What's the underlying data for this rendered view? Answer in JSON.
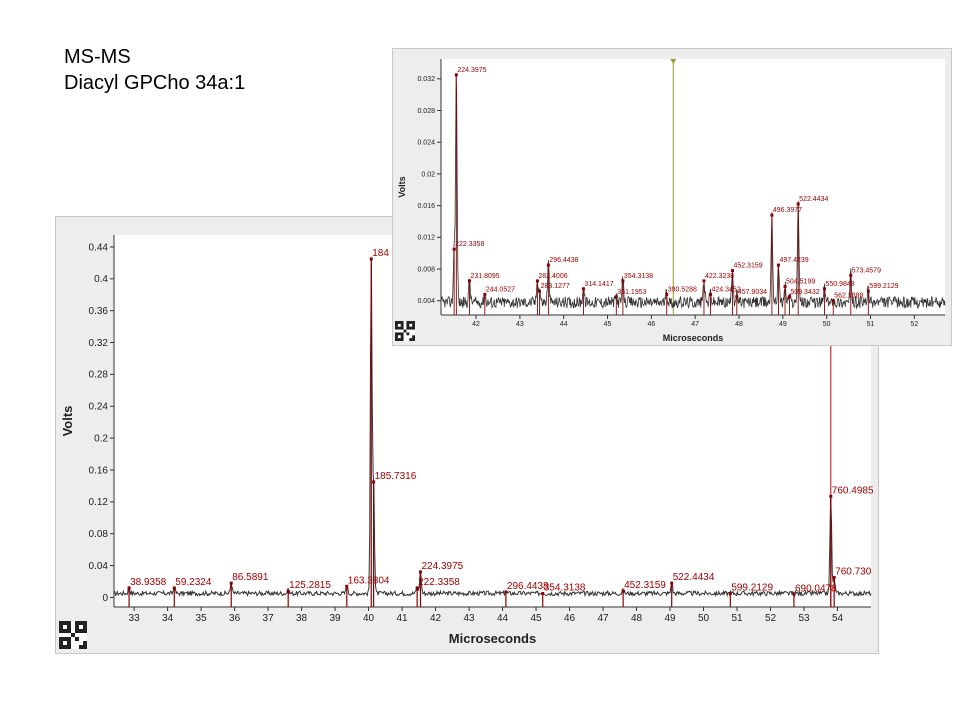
{
  "slide": {
    "title_line1": "MS-MS",
    "title_line2": "Diacyl GPCho 34a:1"
  },
  "colors": {
    "trace": "#333333",
    "peak": "#8b0000",
    "label": "#a00000",
    "cursor_main": "#c00000",
    "cursor_inset": "#9a9a30",
    "panel_bg": "#ededed",
    "plot_bg": "#ffffff"
  },
  "chart_data": [
    {
      "type": "line",
      "xlabel": "Microseconds",
      "ylabel": "Volts",
      "xlim": [
        32.4,
        55.0
      ],
      "ylim": [
        -0.012,
        0.455
      ],
      "x_ticks": [
        33,
        34,
        35,
        36,
        37,
        38,
        39,
        40,
        41,
        42,
        43,
        44,
        45,
        46,
        47,
        48,
        49,
        50,
        51,
        52,
        53,
        54
      ],
      "y_ticks": [
        0,
        0.04,
        0.08,
        0.12,
        0.16,
        0.2,
        0.24,
        0.28,
        0.32,
        0.36,
        0.4,
        0.44
      ],
      "y_tick_labels": [
        "0",
        "0.04",
        "0.08",
        "0.12",
        "0.16",
        "0.2",
        "0.24",
        "0.28",
        "0.32",
        "0.36",
        "0.4",
        "0.44"
      ],
      "cursor_x": 53.8,
      "peaks": [
        {
          "x": 32.85,
          "y": 0.012,
          "label": "38.9358"
        },
        {
          "x": 34.2,
          "y": 0.012,
          "label": "59.2324"
        },
        {
          "x": 35.9,
          "y": 0.018,
          "label": "86.5891"
        },
        {
          "x": 37.6,
          "y": 0.008,
          "label": "125.2815"
        },
        {
          "x": 39.35,
          "y": 0.014,
          "label": "163.3804"
        },
        {
          "x": 40.08,
          "y": 0.425,
          "label": "184"
        },
        {
          "x": 40.15,
          "y": 0.145,
          "label": "185.7316"
        },
        {
          "x": 41.55,
          "y": 0.032,
          "label": "224.3975"
        },
        {
          "x": 41.45,
          "y": 0.012,
          "label": "222.3358"
        },
        {
          "x": 44.1,
          "y": 0.007,
          "label": "296.4438"
        },
        {
          "x": 45.2,
          "y": 0.005,
          "label": "354.3138"
        },
        {
          "x": 47.6,
          "y": 0.008,
          "label": "452.3159"
        },
        {
          "x": 49.05,
          "y": 0.018,
          "label": "522.4434"
        },
        {
          "x": 50.8,
          "y": 0.005,
          "label": "599.2129"
        },
        {
          "x": 52.7,
          "y": 0.004,
          "label": "690.0478"
        },
        {
          "x": 53.8,
          "y": 0.127,
          "label": "760.4985"
        },
        {
          "x": 53.9,
          "y": 0.025,
          "label": "760.730"
        }
      ]
    },
    {
      "type": "line",
      "xlabel": "Microseconds",
      "ylabel": "Volts",
      "xlim": [
        41.2,
        52.7
      ],
      "ylim": [
        0.0022,
        0.0345
      ],
      "x_ticks": [
        42,
        43,
        44,
        45,
        46,
        47,
        48,
        49,
        50,
        51,
        52
      ],
      "y_ticks": [
        0.004,
        0.008,
        0.012,
        0.016,
        0.02,
        0.024,
        0.028,
        0.032
      ],
      "y_tick_labels": [
        "0.004",
        "0.008",
        "0.012",
        "0.016",
        "0.02",
        "0.024",
        "0.028",
        "0.032"
      ],
      "cursor_x": 46.5,
      "peaks": [
        {
          "x": 41.55,
          "y": 0.0325,
          "label": "224.3975"
        },
        {
          "x": 41.5,
          "y": 0.0105,
          "label": "222.3358"
        },
        {
          "x": 41.85,
          "y": 0.0065,
          "label": "231.8095"
        },
        {
          "x": 42.2,
          "y": 0.0048,
          "label": "244.0527"
        },
        {
          "x": 43.65,
          "y": 0.0085,
          "label": "296.4438"
        },
        {
          "x": 43.4,
          "y": 0.0065,
          "label": "282.4006"
        },
        {
          "x": 43.45,
          "y": 0.0052,
          "label": "283.1277"
        },
        {
          "x": 44.45,
          "y": 0.0055,
          "label": "314.1417"
        },
        {
          "x": 45.35,
          "y": 0.0065,
          "label": "354.3138"
        },
        {
          "x": 45.2,
          "y": 0.0045,
          "label": "351.1953"
        },
        {
          "x": 46.35,
          "y": 0.0048,
          "label": "390.5288"
        },
        {
          "x": 47.2,
          "y": 0.0065,
          "label": "422.3238"
        },
        {
          "x": 47.35,
          "y": 0.0048,
          "label": "424.3452"
        },
        {
          "x": 47.85,
          "y": 0.0078,
          "label": "452.3159"
        },
        {
          "x": 47.95,
          "y": 0.0045,
          "label": "457.9034"
        },
        {
          "x": 48.75,
          "y": 0.0148,
          "label": "496.3977"
        },
        {
          "x": 48.9,
          "y": 0.0085,
          "label": "497.4239"
        },
        {
          "x": 49.05,
          "y": 0.0058,
          "label": "504.5199"
        },
        {
          "x": 49.15,
          "y": 0.0045,
          "label": "509.3432"
        },
        {
          "x": 49.35,
          "y": 0.0162,
          "label": "522.4434"
        },
        {
          "x": 49.95,
          "y": 0.0055,
          "label": "550.9848"
        },
        {
          "x": 50.15,
          "y": 0.004,
          "label": "562.1888"
        },
        {
          "x": 50.55,
          "y": 0.0072,
          "label": "573.4579"
        },
        {
          "x": 50.95,
          "y": 0.0052,
          "label": "599.2129"
        }
      ]
    }
  ]
}
